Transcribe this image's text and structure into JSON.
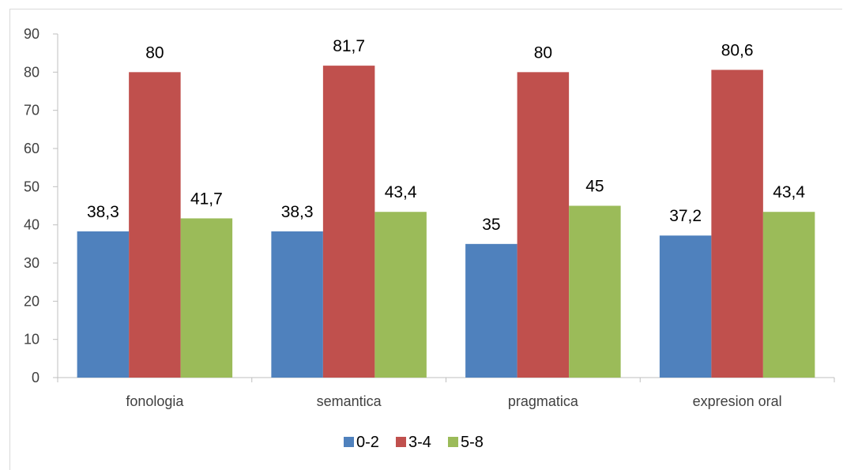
{
  "chart_data": {
    "type": "bar",
    "categories": [
      "fonologia",
      "semantica",
      "pragmatica",
      "expresion oral"
    ],
    "series": [
      {
        "name": "0-2",
        "values": [
          38.3,
          38.3,
          35,
          37.2
        ],
        "labels": [
          "38,3",
          "38,3",
          "35",
          "37,2"
        ],
        "color": "#4F81BD"
      },
      {
        "name": "3-4",
        "values": [
          80,
          81.7,
          80,
          80.6
        ],
        "labels": [
          "80",
          "81,7",
          "80",
          "80,6"
        ],
        "color": "#C0504D"
      },
      {
        "name": "5-8",
        "values": [
          41.7,
          43.4,
          45,
          43.4
        ],
        "labels": [
          "41,7",
          "43,4",
          "45",
          "43,4"
        ],
        "color": "#9BBB59"
      }
    ],
    "ylim": [
      0,
      90
    ],
    "yticks": [
      0,
      10,
      20,
      30,
      40,
      50,
      60,
      70,
      80,
      90
    ],
    "grid": false,
    "legend": "bottom"
  }
}
